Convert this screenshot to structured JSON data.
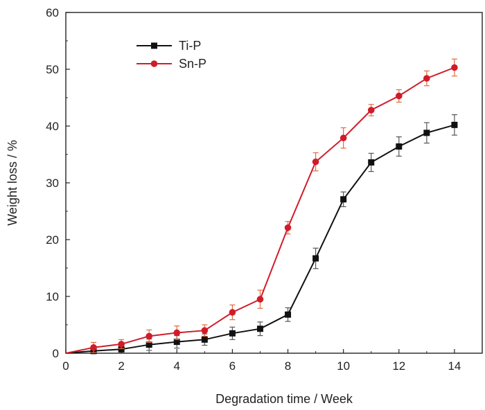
{
  "chart_data": {
    "type": "line",
    "title": "",
    "xlabel": "Degradation time / Week",
    "ylabel": "Weight loss / %",
    "xlim": [
      0,
      15
    ],
    "ylim": [
      0,
      60
    ],
    "xticks": [
      0,
      2,
      4,
      6,
      8,
      10,
      12,
      14
    ],
    "yticks": [
      0,
      10,
      20,
      30,
      40,
      50,
      60
    ],
    "grid": false,
    "legend_position": "top-left",
    "x": [
      0,
      1,
      2,
      3,
      4,
      5,
      6,
      7,
      8,
      9,
      10,
      11,
      12,
      13,
      14
    ],
    "series": [
      {
        "name": "Ti-P",
        "color": "#111111",
        "error_color": "#555555",
        "marker": "square",
        "values": [
          0,
          0.4,
          0.7,
          1.5,
          2.0,
          2.4,
          3.5,
          4.3,
          6.8,
          16.7,
          27.1,
          33.6,
          36.4,
          38.8,
          40.2
        ],
        "errors": [
          0,
          0.5,
          0.5,
          1.0,
          1.1,
          1.0,
          1.1,
          1.2,
          1.2,
          1.8,
          1.3,
          1.6,
          1.7,
          1.8,
          1.8
        ]
      },
      {
        "name": "Sn-P",
        "color": "#d01c2a",
        "error_color": "#e36a3c",
        "marker": "circle",
        "values": [
          0,
          1.0,
          1.6,
          3.0,
          3.6,
          4.0,
          7.2,
          9.5,
          22.1,
          33.7,
          37.9,
          42.8,
          45.3,
          48.4,
          50.3
        ],
        "errors": [
          0,
          0.9,
          0.8,
          1.1,
          1.2,
          1.0,
          1.3,
          1.6,
          1.1,
          1.6,
          1.8,
          1.0,
          1.1,
          1.3,
          1.5
        ]
      }
    ]
  }
}
